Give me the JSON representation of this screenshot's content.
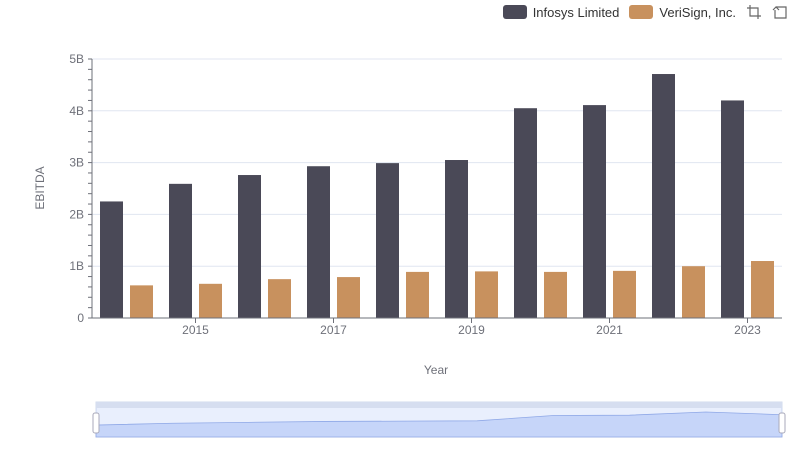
{
  "legend": {
    "items": [
      {
        "name": "Infosys Limited",
        "color": "#4a4957"
      },
      {
        "name": "VeriSign, Inc.",
        "color": "#c8915e"
      }
    ]
  },
  "toolbox": {
    "icons": [
      "zoom-icon",
      "restore-icon"
    ]
  },
  "chart_data": {
    "type": "bar",
    "title": "",
    "xlabel": "Year",
    "ylabel": "EBITDA",
    "categories": [
      "2014",
      "2015",
      "2016",
      "2017",
      "2018",
      "2019",
      "2020",
      "2021",
      "2022",
      "2023"
    ],
    "x_tick_labels": [
      "2015",
      "2017",
      "2019",
      "2021",
      "2023"
    ],
    "y_tick_labels": [
      "0",
      "1B",
      "2B",
      "3B",
      "4B",
      "5B"
    ],
    "ylim": [
      0,
      5000000000
    ],
    "series": [
      {
        "name": "Infosys Limited",
        "color": "#4a4957",
        "values": [
          2250000000,
          2590000000,
          2760000000,
          2930000000,
          2990000000,
          3050000000,
          4050000000,
          4110000000,
          4710000000,
          4200000000
        ]
      },
      {
        "name": "VeriSign, Inc.",
        "color": "#c8915e",
        "values": [
          630000000,
          660000000,
          750000000,
          790000000,
          890000000,
          900000000,
          890000000,
          910000000,
          1000000000,
          1100000000
        ]
      }
    ],
    "grid": true,
    "legend_position": "top-right",
    "data_zoom": {
      "range": "full"
    }
  }
}
